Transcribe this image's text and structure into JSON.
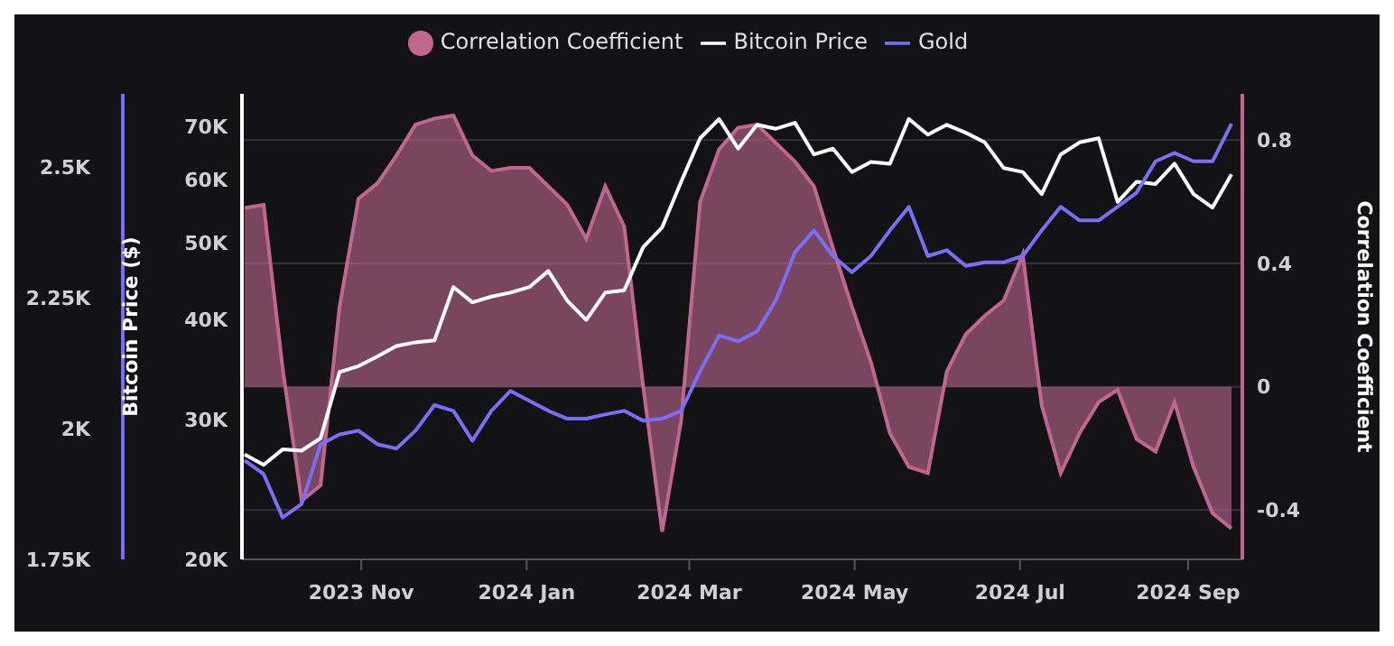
{
  "chart_data": {
    "type": "line",
    "x": [
      "2023-09-19",
      "2023-09-26",
      "2023-10-03",
      "2023-10-10",
      "2023-10-17",
      "2023-10-24",
      "2023-10-31",
      "2023-11-07",
      "2023-11-14",
      "2023-11-21",
      "2023-11-28",
      "2023-12-05",
      "2023-12-12",
      "2023-12-19",
      "2023-12-26",
      "2024-01-02",
      "2024-01-09",
      "2024-01-16",
      "2024-01-23",
      "2024-01-30",
      "2024-02-06",
      "2024-02-13",
      "2024-02-20",
      "2024-02-27",
      "2024-03-05",
      "2024-03-12",
      "2024-03-19",
      "2024-03-26",
      "2024-04-02",
      "2024-04-09",
      "2024-04-16",
      "2024-04-23",
      "2024-04-30",
      "2024-05-07",
      "2024-05-14",
      "2024-05-21",
      "2024-05-28",
      "2024-06-04",
      "2024-06-11",
      "2024-06-18",
      "2024-06-25",
      "2024-07-02",
      "2024-07-09",
      "2024-07-16",
      "2024-07-23",
      "2024-07-30",
      "2024-08-06",
      "2024-08-13",
      "2024-08-20",
      "2024-08-27",
      "2024-09-03",
      "2024-09-10",
      "2024-09-17"
    ],
    "series": [
      {
        "name": "Correlation Coefficient",
        "type": "area",
        "axis": "y2",
        "color": "#c0678f",
        "values": [
          0.58,
          0.59,
          0.06,
          -0.37,
          -0.32,
          0.26,
          0.61,
          0.66,
          0.75,
          0.85,
          0.87,
          0.88,
          0.75,
          0.7,
          0.71,
          0.71,
          0.65,
          0.59,
          0.48,
          0.65,
          0.52,
          0.0,
          -0.47,
          -0.11,
          0.6,
          0.77,
          0.84,
          0.85,
          0.79,
          0.73,
          0.65,
          0.45,
          0.26,
          0.08,
          -0.15,
          -0.26,
          -0.28,
          0.05,
          0.17,
          0.23,
          0.28,
          0.43,
          -0.06,
          -0.28,
          -0.15,
          -0.05,
          -0.01,
          -0.17,
          -0.21,
          -0.05,
          -0.26,
          -0.41,
          -0.46
        ]
      },
      {
        "name": "Bitcoin Price",
        "axis": "y",
        "color": "#ffffff",
        "values": [
          27100,
          26300,
          27500,
          27400,
          28400,
          34400,
          35000,
          36000,
          37100,
          37500,
          37700,
          44000,
          42100,
          42800,
          43300,
          44000,
          46100,
          42300,
          40000,
          43300,
          43600,
          49400,
          52300,
          59700,
          67700,
          71600,
          65700,
          70400,
          69600,
          70800,
          64600,
          65700,
          61400,
          63200,
          62900,
          71600,
          68400,
          70400,
          68800,
          66900,
          62100,
          61400,
          57600,
          64600,
          66900,
          67700,
          56300,
          59700,
          59300,
          62900,
          57600,
          55400,
          61000
        ]
      },
      {
        "name": "Gold",
        "axis": "y3",
        "color": "#7b6ef6",
        "values": [
          1939,
          1913,
          1830,
          1856,
          1970,
          1989,
          1996,
          1970,
          1962,
          1996,
          2045,
          2034,
          1977,
          2034,
          2072,
          2053,
          2034,
          2019,
          2019,
          2027,
          2034,
          2015,
          2019,
          2034,
          2110,
          2178,
          2167,
          2186,
          2246,
          2337,
          2379,
          2330,
          2299,
          2330,
          2379,
          2424,
          2330,
          2341,
          2311,
          2318,
          2318,
          2330,
          2379,
          2424,
          2398,
          2398,
          2424,
          2451,
          2511,
          2527,
          2511,
          2511,
          2583
        ]
      }
    ],
    "xlim": [
      "2023-09-18",
      "2024-09-21"
    ],
    "xticks": [
      {
        "value": "2023-11-01",
        "label": "2023 Nov"
      },
      {
        "value": "2024-01-01",
        "label": "2024 Jan"
      },
      {
        "value": "2024-03-01",
        "label": "2024 Mar"
      },
      {
        "value": "2024-05-01",
        "label": "2024 May"
      },
      {
        "value": "2024-07-01",
        "label": "2024 Jul"
      },
      {
        "value": "2024-09-01",
        "label": "2024 Sep"
      }
    ],
    "ylabel": "Bitcoin Price ($)",
    "ylim": [
      20000,
      77000
    ],
    "yticks": [
      {
        "value": 20000,
        "label": "20K"
      },
      {
        "value": 30000,
        "label": "30K"
      },
      {
        "value": 40000,
        "label": "40K"
      },
      {
        "value": 50000,
        "label": "50K"
      },
      {
        "value": 60000,
        "label": "60K"
      },
      {
        "value": 70000,
        "label": "70K"
      }
    ],
    "log": "y",
    "y2label": "Correlation Coefficient",
    "y2lim": [
      -0.56,
      0.95
    ],
    "y2ticks": [
      -0.4,
      0,
      0.4,
      0.8
    ],
    "y3lim": [
      1750,
      2640
    ],
    "y3ticks": [
      {
        "value": 1750,
        "label": "1.75K"
      },
      {
        "value": 2000,
        "label": "2K"
      },
      {
        "value": 2250,
        "label": "2.25K"
      },
      {
        "value": 2500,
        "label": "2.5K"
      }
    ],
    "grid": true,
    "legend": "top"
  }
}
